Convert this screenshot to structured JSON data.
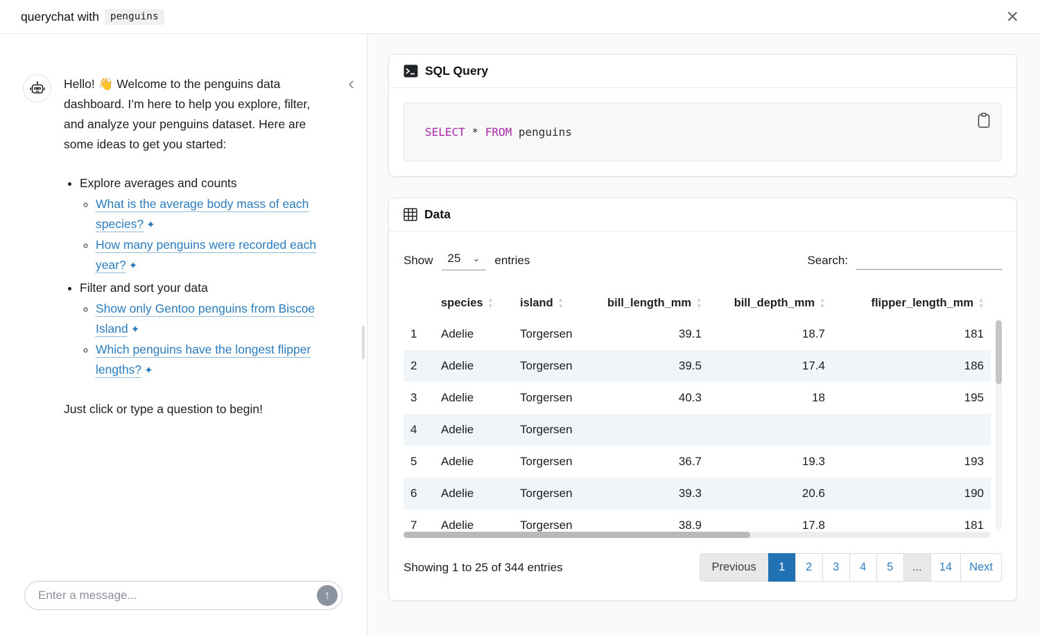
{
  "header": {
    "title_prefix": "querychat with",
    "dataset_name": "penguins",
    "close_icon": "✕"
  },
  "sidebar": {
    "collapse_icon": "‹",
    "message": {
      "intro": "Hello! 👋 Welcome to the penguins data dashboard. I’m here to help you explore, filter, and analyze your penguins dataset. Here are some ideas to get you started:",
      "groups": [
        {
          "label": "Explore averages and counts",
          "links": [
            "What is the average body mass of each species?",
            "How many penguins were recorded each year?"
          ]
        },
        {
          "label": "Filter and sort your data",
          "links": [
            "Show only Gentoo penguins from Biscoe Island",
            "Which penguins have the longest flipper lengths?"
          ]
        }
      ],
      "sparkle": "✦",
      "outro": "Just click or type a question to begin!"
    },
    "input": {
      "placeholder": "Enter a message...",
      "send_icon": "↑"
    }
  },
  "sql_card": {
    "title": "SQL Query",
    "code": {
      "kw1": "SELECT",
      "mid": " * ",
      "kw2": "FROM",
      "tail": " penguins"
    }
  },
  "data_card": {
    "title": "Data",
    "controls": {
      "show_label": "Show",
      "page_size": "25",
      "entries_label": "entries",
      "search_label": "Search:"
    },
    "table": {
      "columns": [
        "species",
        "island",
        "bill_length_mm",
        "bill_depth_mm",
        "flipper_length_mm"
      ],
      "rows": [
        [
          "1",
          "Adelie",
          "Torgersen",
          "39.1",
          "18.7",
          "181"
        ],
        [
          "2",
          "Adelie",
          "Torgersen",
          "39.5",
          "17.4",
          "186"
        ],
        [
          "3",
          "Adelie",
          "Torgersen",
          "40.3",
          "18",
          "195"
        ],
        [
          "4",
          "Adelie",
          "Torgersen",
          "",
          "",
          ""
        ],
        [
          "5",
          "Adelie",
          "Torgersen",
          "36.7",
          "19.3",
          "193"
        ],
        [
          "6",
          "Adelie",
          "Torgersen",
          "39.3",
          "20.6",
          "190"
        ],
        [
          "7",
          "Adelie",
          "Torgersen",
          "38.9",
          "17.8",
          "181"
        ]
      ]
    },
    "info": "Showing 1 to 25 of 344 entries",
    "pagination": {
      "previous": "Previous",
      "pages": [
        "1",
        "2",
        "3",
        "4",
        "5",
        "...",
        "14"
      ],
      "active": "1",
      "next": "Next"
    }
  },
  "icons": {
    "sort_asc": "▲",
    "sort_desc": "▼"
  },
  "colors": {
    "accent_blue": "#2171b5",
    "link_blue": "#2b7cbd",
    "sql_keyword": "#ab27a9",
    "row_stripe": "#f0f5fa"
  }
}
